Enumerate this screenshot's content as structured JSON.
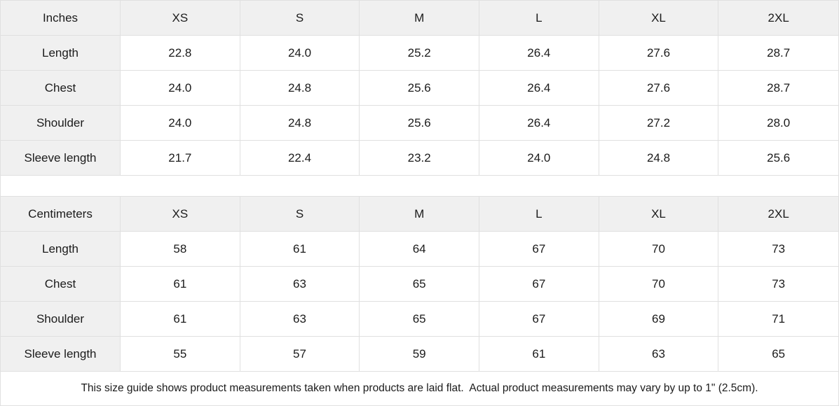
{
  "colors": {
    "header_and_label_background": "#f0f0f0",
    "grid_line": "#e0e0e0",
    "text": "#1b1b1b"
  },
  "tables": [
    {
      "unit_label": "Inches",
      "sizes": [
        "XS",
        "S",
        "M",
        "L",
        "XL",
        "2XL"
      ],
      "rows": [
        {
          "label": "Length",
          "values": [
            "22.8",
            "24.0",
            "25.2",
            "26.4",
            "27.6",
            "28.7"
          ]
        },
        {
          "label": "Chest",
          "values": [
            "24.0",
            "24.8",
            "25.6",
            "26.4",
            "27.6",
            "28.7"
          ]
        },
        {
          "label": "Shoulder",
          "values": [
            "24.0",
            "24.8",
            "25.6",
            "26.4",
            "27.2",
            "28.0"
          ]
        },
        {
          "label": "Sleeve length",
          "values": [
            "21.7",
            "22.4",
            "23.2",
            "24.0",
            "24.8",
            "25.6"
          ]
        }
      ]
    },
    {
      "unit_label": "Centimeters",
      "sizes": [
        "XS",
        "S",
        "M",
        "L",
        "XL",
        "2XL"
      ],
      "rows": [
        {
          "label": "Length",
          "values": [
            "58",
            "61",
            "64",
            "67",
            "70",
            "73"
          ]
        },
        {
          "label": "Chest",
          "values": [
            "61",
            "63",
            "65",
            "67",
            "70",
            "73"
          ]
        },
        {
          "label": "Shoulder",
          "values": [
            "61",
            "63",
            "65",
            "67",
            "69",
            "71"
          ]
        },
        {
          "label": "Sleeve length",
          "values": [
            "55",
            "57",
            "59",
            "61",
            "63",
            "65"
          ]
        }
      ]
    }
  ],
  "footnote": "This size guide shows product measurements taken when products are laid flat.  Actual product measurements may vary by up to 1\" (2.5cm)."
}
